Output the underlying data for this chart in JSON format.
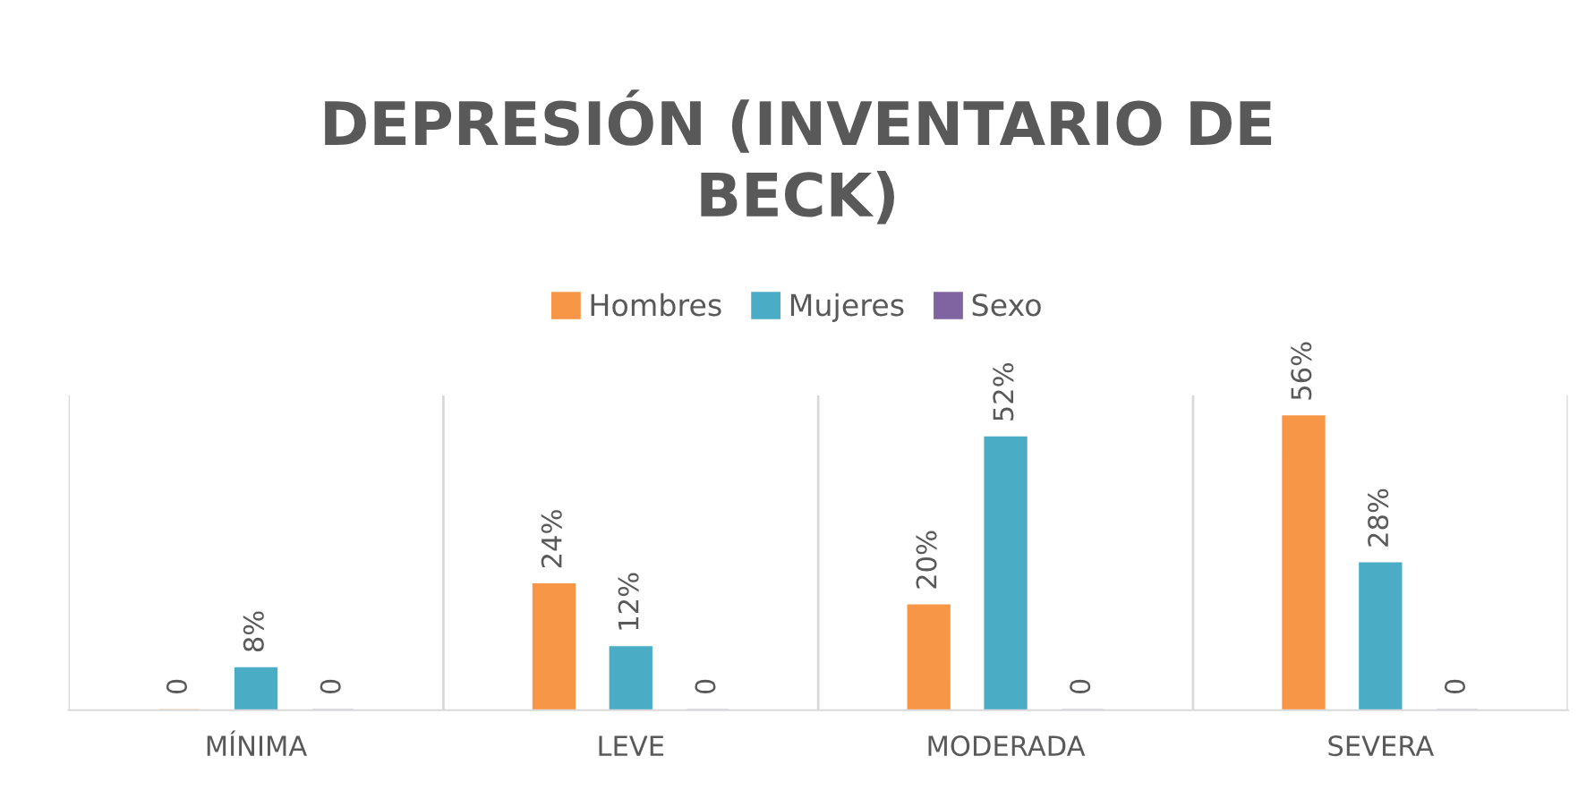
{
  "chart_data": {
    "type": "bar",
    "title": "DEPRESIÓN (INVENTARIO DE BECK)",
    "categories": [
      "MÍNIMA",
      "LEVE",
      "MODERADA",
      "SEVERA"
    ],
    "series": [
      {
        "name": "Hombres",
        "color": "#f79646",
        "values": [
          0,
          24,
          20,
          56
        ],
        "value_labels": [
          "0",
          "24%",
          "20%",
          "56%"
        ]
      },
      {
        "name": "Mujeres",
        "color": "#4bacc6",
        "values": [
          8,
          12,
          52,
          28
        ],
        "value_labels": [
          "8%",
          "12%",
          "52%",
          "28%"
        ]
      },
      {
        "name": "Sexo",
        "color": "#8064a2",
        "values": [
          0,
          0,
          0,
          0
        ],
        "value_labels": [
          "0",
          "0",
          "0",
          "0"
        ]
      }
    ],
    "ylim": [
      0,
      60
    ],
    "grid": "x",
    "legend": "top",
    "tick_labels": "x"
  }
}
